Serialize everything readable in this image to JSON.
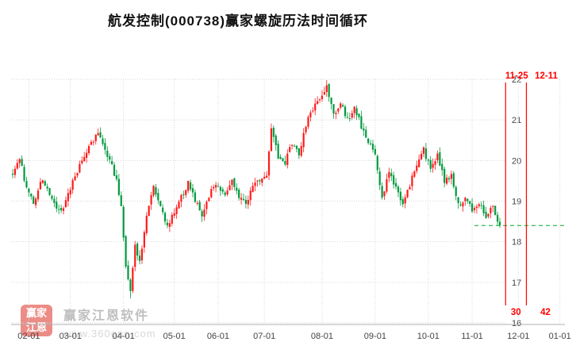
{
  "title": "航发控制(000738)赢家螺旋历法时间循环",
  "watermark": {
    "logo_line1": "赢家",
    "logo_line2": "江恩",
    "brand": "赢家江恩软件",
    "url": "www.360gnn.com"
  },
  "colors": {
    "up": "#ff1a1a",
    "down": "#009a3e",
    "grid": "#d6d6d6",
    "axis_line": "#b0b0b0",
    "axis_text": "#444444",
    "annotation": "#ff0000",
    "last_price_line": "#00aa22",
    "title_text": "#111111"
  },
  "chart_data": {
    "type": "candlestick",
    "name": "航发控制",
    "symbol": "000738",
    "title": "航发控制(000738)赢家螺旋历法时间循环",
    "ylim": [
      16,
      22
    ],
    "y_ticks": [
      16,
      17,
      18,
      19,
      20,
      21,
      22
    ],
    "grid": true,
    "x_ticks": [
      {
        "label": "02-01",
        "day": 7
      },
      {
        "label": "03-01",
        "day": 25
      },
      {
        "label": "04-01",
        "day": 48
      },
      {
        "label": "05-01",
        "day": 70
      },
      {
        "label": "06-01",
        "day": 89
      },
      {
        "label": "07-01",
        "day": 109
      },
      {
        "label": "08-01",
        "day": 134
      },
      {
        "label": "09-01",
        "day": 157
      },
      {
        "label": "10-01",
        "day": 180
      },
      {
        "label": "11-01",
        "day": 199
      },
      {
        "label": "12-01",
        "day": 219
      },
      {
        "label": "01-01",
        "day": 237
      }
    ],
    "annotations": {
      "vlines": [
        {
          "date_label": "11-25",
          "count_label": "30",
          "day": 213.5,
          "label_dx": 14
        },
        {
          "date_label": "12-11",
          "count_label": "42",
          "day": 222.5,
          "label_dx": 25
        }
      ],
      "last_price": 18.4
    },
    "candle_generation": {
      "seed": 1337,
      "count": 212,
      "noise": 0.16,
      "wick": 0.14,
      "waypoints": [
        [
          0,
          19.7
        ],
        [
          3,
          20.05
        ],
        [
          6,
          19.3
        ],
        [
          9,
          18.95
        ],
        [
          13,
          19.55
        ],
        [
          17,
          19.0
        ],
        [
          21,
          18.75
        ],
        [
          25,
          19.35
        ],
        [
          29,
          19.9
        ],
        [
          33,
          20.3
        ],
        [
          37,
          20.75
        ],
        [
          41,
          20.15
        ],
        [
          45,
          19.55
        ],
        [
          47,
          18.9
        ],
        [
          49,
          17.4
        ],
        [
          51,
          16.75
        ],
        [
          53,
          17.85
        ],
        [
          55,
          17.55
        ],
        [
          58,
          18.6
        ],
        [
          61,
          19.3
        ],
        [
          64,
          18.9
        ],
        [
          67,
          18.35
        ],
        [
          70,
          18.7
        ],
        [
          73,
          19.1
        ],
        [
          76,
          19.45
        ],
        [
          79,
          19.0
        ],
        [
          82,
          18.7
        ],
        [
          85,
          19.15
        ],
        [
          88,
          19.45
        ],
        [
          92,
          19.2
        ],
        [
          95,
          19.5
        ],
        [
          98,
          19.1
        ],
        [
          101,
          18.95
        ],
        [
          104,
          19.3
        ],
        [
          107,
          19.55
        ],
        [
          110,
          19.7
        ],
        [
          112,
          20.85
        ],
        [
          115,
          20.1
        ],
        [
          118,
          19.95
        ],
        [
          121,
          20.45
        ],
        [
          124,
          20.1
        ],
        [
          127,
          20.9
        ],
        [
          130,
          21.3
        ],
        [
          133,
          21.55
        ],
        [
          136,
          21.85
        ],
        [
          139,
          21.1
        ],
        [
          142,
          21.45
        ],
        [
          145,
          21.0
        ],
        [
          148,
          21.3
        ],
        [
          151,
          20.85
        ],
        [
          154,
          20.5
        ],
        [
          157,
          20.2
        ],
        [
          160,
          19.1
        ],
        [
          163,
          19.7
        ],
        [
          166,
          19.3
        ],
        [
          169,
          18.95
        ],
        [
          172,
          19.4
        ],
        [
          175,
          19.95
        ],
        [
          178,
          20.25
        ],
        [
          181,
          19.8
        ],
        [
          184,
          20.15
        ],
        [
          187,
          19.5
        ],
        [
          190,
          19.6
        ],
        [
          193,
          18.9
        ],
        [
          196,
          19.1
        ],
        [
          199,
          18.8
        ],
        [
          202,
          18.95
        ],
        [
          205,
          18.6
        ],
        [
          208,
          18.85
        ],
        [
          211,
          18.4
        ]
      ],
      "forced_high": [
        [
          136,
          21.98
        ]
      ],
      "forced_low": [
        [
          51,
          16.6
        ]
      ]
    }
  }
}
